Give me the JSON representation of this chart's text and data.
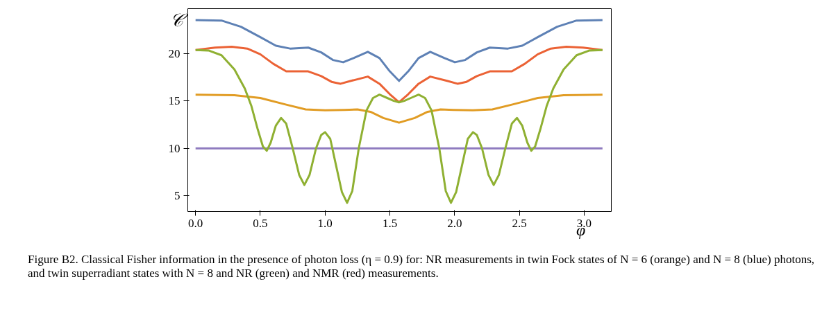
{
  "chart_data": {
    "type": "line",
    "xlabel": "φ",
    "ylabel": "𝒞",
    "annotations": [
      "Figure B2. Classical Fisher information in the presence of photon loss (η = 0.9) for: NR measurements in twin Fock states of N = 6 (orange) and N = 8 (blue) photons, and twin superradiant states with N = 8 and NR (green) and NMR (red) measurements."
    ],
    "xlim": [
      -0.06,
      3.21
    ],
    "ylim": [
      3.35,
      24.7
    ],
    "xticks": [
      {
        "value": 0,
        "label": "0.0"
      },
      {
        "value": 0.5,
        "label": "0.5"
      },
      {
        "value": 1,
        "label": "1.0"
      },
      {
        "value": 1.5,
        "label": "1.5"
      },
      {
        "value": 2,
        "label": "2.0"
      },
      {
        "value": 2.5,
        "label": "2.5"
      },
      {
        "value": 3,
        "label": "3.0"
      }
    ],
    "yticks": [
      5,
      10,
      15,
      20
    ],
    "grid": false,
    "marker": "none",
    "line_style": "solid",
    "series": [
      {
        "color": "#5e81b5",
        "x": [
          0,
          0.2,
          0.35,
          0.5,
          0.62,
          0.73,
          0.87,
          0.97,
          1.06,
          1.14,
          1.22,
          1.33,
          1.42,
          1.5,
          1.571,
          1.642,
          1.722,
          1.812,
          1.922,
          2.002,
          2.082,
          2.172,
          2.272,
          2.412,
          2.522,
          2.642,
          2.792,
          2.942,
          3.142
        ],
        "values": [
          23.5,
          23.45,
          22.8,
          21.7,
          20.8,
          20.5,
          20.6,
          20.1,
          19.3,
          19.06,
          19.5,
          20.16,
          19.5,
          18.1,
          17.1,
          18.1,
          19.5,
          20.16,
          19.5,
          19.06,
          19.3,
          20.1,
          20.6,
          20.5,
          20.8,
          21.7,
          22.8,
          23.45,
          23.5
        ]
      },
      {
        "color": "#eb6235",
        "x": [
          0,
          0.15,
          0.28,
          0.4,
          0.5,
          0.6,
          0.7,
          0.87,
          0.97,
          1.05,
          1.12,
          1.2,
          1.33,
          1.42,
          1.5,
          1.571,
          1.642,
          1.722,
          1.812,
          1.942,
          2.022,
          2.092,
          2.172,
          2.272,
          2.442,
          2.542,
          2.642,
          2.742,
          2.862,
          2.992,
          3.142
        ],
        "values": [
          20.35,
          20.6,
          20.7,
          20.5,
          19.9,
          18.9,
          18.1,
          18.1,
          17.6,
          17.0,
          16.8,
          17.1,
          17.55,
          16.8,
          15.7,
          14.85,
          15.7,
          16.8,
          17.55,
          17.1,
          16.8,
          17.0,
          17.6,
          18.1,
          18.1,
          18.9,
          19.9,
          20.5,
          20.7,
          20.6,
          20.35
        ]
      },
      {
        "color": "#e19c24",
        "x": [
          0,
          0.3,
          0.5,
          0.7,
          0.85,
          1.0,
          1.15,
          1.25,
          1.35,
          1.45,
          1.571,
          1.692,
          1.792,
          1.892,
          1.992,
          2.142,
          2.292,
          2.442,
          2.642,
          2.842,
          3.142
        ],
        "values": [
          15.65,
          15.6,
          15.3,
          14.6,
          14.1,
          14.0,
          14.05,
          14.1,
          13.85,
          13.2,
          12.7,
          13.2,
          13.85,
          14.1,
          14.05,
          14.0,
          14.1,
          14.6,
          15.3,
          15.6,
          15.65
        ]
      },
      {
        "color": "#8f7bbf",
        "x": [
          0,
          3.142
        ],
        "values": [
          10,
          10
        ]
      },
      {
        "color": "#8fb032",
        "x": [
          0,
          0.1,
          0.2,
          0.3,
          0.38,
          0.43,
          0.48,
          0.52,
          0.55,
          0.58,
          0.62,
          0.66,
          0.7,
          0.75,
          0.8,
          0.84,
          0.88,
          0.93,
          0.97,
          1.0,
          1.04,
          1.08,
          1.13,
          1.17,
          1.21,
          1.26,
          1.32,
          1.37,
          1.42,
          1.48,
          1.53,
          1.571,
          1.612,
          1.662,
          1.722,
          1.772,
          1.822,
          1.882,
          1.932,
          1.972,
          2.012,
          2.062,
          2.102,
          2.142,
          2.172,
          2.212,
          2.262,
          2.302,
          2.342,
          2.392,
          2.442,
          2.482,
          2.522,
          2.562,
          2.592,
          2.622,
          2.662,
          2.712,
          2.762,
          2.842,
          2.942,
          3.042,
          3.142
        ],
        "values": [
          20.35,
          20.3,
          19.8,
          18.3,
          16.3,
          14.5,
          12.0,
          10.2,
          9.75,
          10.6,
          12.4,
          13.2,
          12.6,
          10.0,
          7.2,
          6.15,
          7.2,
          10.0,
          11.4,
          11.7,
          11.0,
          8.5,
          5.4,
          4.27,
          5.5,
          10.0,
          14.0,
          15.3,
          15.65,
          15.3,
          15.0,
          14.85,
          15.0,
          15.3,
          15.65,
          15.3,
          14.0,
          10.0,
          5.5,
          4.27,
          5.4,
          8.5,
          11.0,
          11.7,
          11.4,
          10.0,
          7.2,
          6.15,
          7.2,
          10.0,
          12.6,
          13.2,
          12.4,
          10.6,
          9.75,
          10.2,
          12.0,
          14.5,
          16.3,
          18.3,
          19.8,
          20.3,
          20.35
        ]
      }
    ]
  }
}
